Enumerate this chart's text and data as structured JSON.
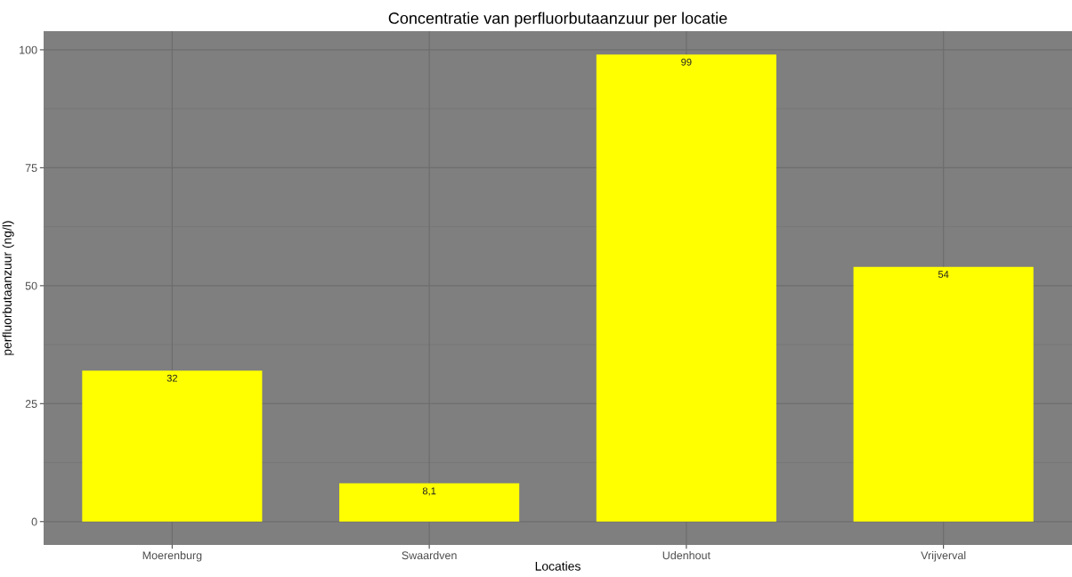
{
  "chart_data": {
    "type": "bar",
    "title": "Concentratie van perfluorbutaanzuur per locatie",
    "xlabel": "Locaties",
    "ylabel": "perfluorbutaanzuur (ng/l)",
    "categories": [
      "Moerenburg",
      "Swaardven",
      "Udenhout",
      "Vrijverval"
    ],
    "values": [
      32,
      8.1,
      99,
      54
    ],
    "value_labels": [
      "32",
      "8,1",
      "99",
      "54"
    ],
    "color": "#ffff00",
    "ylim": [
      -4.95,
      103.95
    ],
    "yticks": [
      0,
      25,
      50,
      75,
      100
    ],
    "grid": true,
    "legend": false
  }
}
